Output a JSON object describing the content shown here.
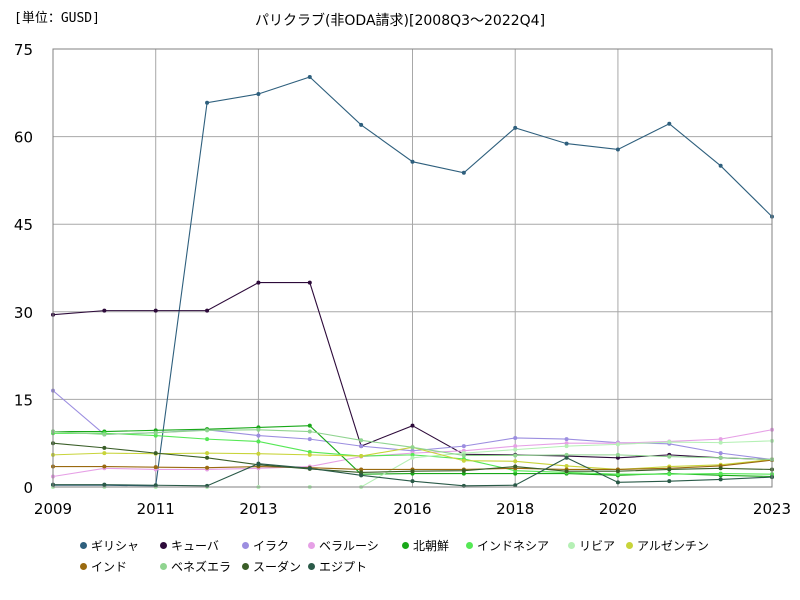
{
  "header": {
    "unit_label": "[単位：GUSD]",
    "title": "パリクラブ(非ODA請求)[2008Q3～2022Q4]"
  },
  "chart_data": {
    "type": "line",
    "title": "パリクラブ(非ODA請求)[2008Q3～2022Q4]",
    "unit": "[単位：GUSD]",
    "x": [
      2009,
      2010,
      2011,
      2012,
      2013,
      2014,
      2015,
      2016,
      2017,
      2018,
      2019,
      2020,
      2021,
      2022,
      2023
    ],
    "xlim": [
      2009,
      2023
    ],
    "xticks": [
      2009,
      2011,
      2013,
      2016,
      2018,
      2020,
      2023
    ],
    "ylim": [
      0,
      75
    ],
    "yticks": [
      0,
      15,
      30,
      45,
      60,
      75
    ],
    "grid": true,
    "legend_position": "bottom",
    "series": [
      {
        "name": "ギリシャ",
        "color": "#2e5f7d",
        "values": [
          0.3,
          0.3,
          0.2,
          65.8,
          67.3,
          70.2,
          62.0,
          55.7,
          53.8,
          61.5,
          58.8,
          57.8,
          62.2,
          55.0,
          46.3
        ]
      },
      {
        "name": "キューバ",
        "color": "#2d0a3a",
        "values": [
          29.5,
          30.2,
          30.2,
          30.2,
          35.0,
          35.0,
          7.0,
          10.5,
          5.6,
          5.5,
          5.3,
          5.0,
          5.5,
          5.0,
          4.7
        ]
      },
      {
        "name": "イラク",
        "color": "#9c8ee0",
        "values": [
          16.5,
          9.0,
          9.3,
          9.8,
          8.8,
          8.2,
          7.0,
          6.2,
          7.0,
          8.4,
          8.2,
          7.6,
          7.4,
          5.8,
          4.7
        ]
      },
      {
        "name": "ベラルーシ",
        "color": "#e6a0e6",
        "values": [
          1.8,
          3.2,
          3.0,
          3.0,
          3.2,
          3.5,
          5.2,
          5.8,
          6.2,
          7.0,
          7.5,
          7.5,
          7.8,
          8.2,
          9.8
        ]
      },
      {
        "name": "北朝鮮",
        "color": "#19a819",
        "values": [
          9.5,
          9.5,
          9.7,
          9.9,
          10.2,
          10.5,
          2.2,
          2.3,
          2.3,
          2.3,
          2.3,
          2.0,
          2.3,
          2.0,
          1.8
        ]
      },
      {
        "name": "インドネシア",
        "color": "#55e855",
        "values": [
          9.2,
          9.2,
          8.8,
          8.2,
          7.8,
          6.0,
          5.3,
          5.5,
          4.8,
          2.8,
          2.5,
          2.2,
          2.2,
          2.3,
          2.2
        ]
      },
      {
        "name": "リビア",
        "color": "#b5f0b5",
        "values": [
          0.0,
          0.0,
          0.0,
          0.0,
          0.0,
          0.0,
          0.0,
          5.0,
          5.8,
          6.4,
          7.0,
          7.3,
          7.7,
          7.6,
          7.9
        ]
      },
      {
        "name": "アルゼンチン",
        "color": "#c8d43a",
        "values": [
          5.5,
          5.8,
          5.7,
          5.8,
          5.7,
          5.5,
          5.3,
          6.8,
          4.5,
          4.4,
          3.6,
          3.0,
          3.5,
          3.8,
          4.7
        ]
      },
      {
        "name": "インド",
        "color": "#9a6a10",
        "values": [
          3.5,
          3.5,
          3.4,
          3.3,
          3.5,
          3.3,
          3.0,
          3.0,
          3.0,
          3.2,
          3.0,
          3.0,
          3.2,
          3.6,
          4.6
        ]
      },
      {
        "name": "ベネズエラ",
        "color": "#90d490",
        "values": [
          9.5,
          9.0,
          9.3,
          9.7,
          9.8,
          9.5,
          8.0,
          6.8,
          5.4,
          5.4,
          5.5,
          5.5,
          5.2,
          5.0,
          4.7
        ]
      },
      {
        "name": "スーダン",
        "color": "#3a5e28",
        "values": [
          7.5,
          6.7,
          5.8,
          5.0,
          3.8,
          3.1,
          2.5,
          2.7,
          2.8,
          3.5,
          2.7,
          2.7,
          3.0,
          3.2,
          3.0
        ]
      },
      {
        "name": "エジプト",
        "color": "#2a5a48",
        "values": [
          0.4,
          0.4,
          0.3,
          0.2,
          4.0,
          3.2,
          2.0,
          1.0,
          0.2,
          0.3,
          5.0,
          0.8,
          1.0,
          1.3,
          1.7
        ]
      }
    ]
  }
}
